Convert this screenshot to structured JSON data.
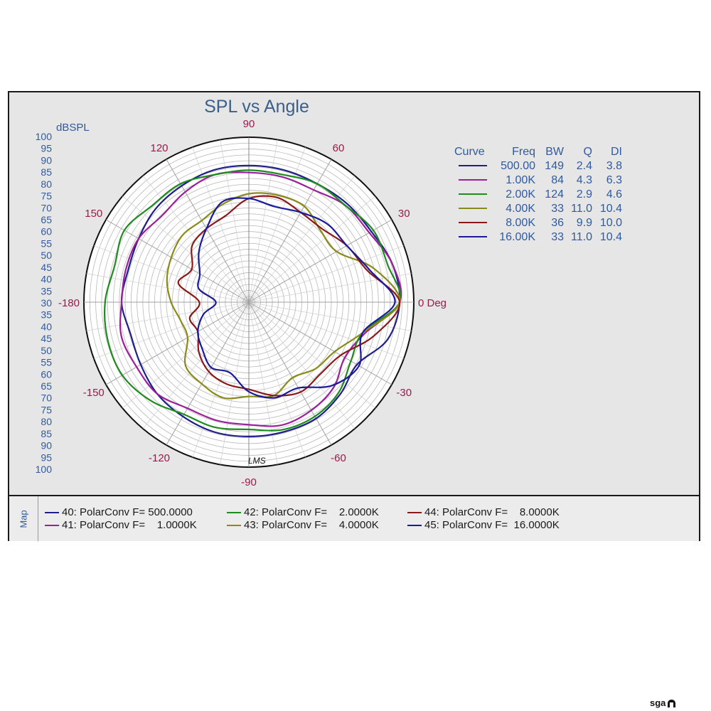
{
  "chart_data": {
    "type": "polar",
    "title": "SPL vs Angle",
    "rlabel": "dBSPL",
    "rlim": [
      30,
      100
    ],
    "r_ticks": [
      "100",
      "95",
      "90",
      "85",
      "80",
      "75",
      "70",
      "65",
      "60",
      "55",
      "50",
      "45",
      "40",
      "35",
      "30",
      "35",
      "40",
      "45",
      "50",
      "55",
      "60",
      "65",
      "70",
      "75",
      "80",
      "85",
      "90",
      "95",
      "100"
    ],
    "angle_labels": [
      {
        "deg": 0,
        "text": "0 Deg"
      },
      {
        "deg": 30,
        "text": "30"
      },
      {
        "deg": 60,
        "text": "60"
      },
      {
        "deg": 90,
        "text": "90"
      },
      {
        "deg": 120,
        "text": "120"
      },
      {
        "deg": 150,
        "text": "150"
      },
      {
        "deg": 180,
        "text": "-180"
      },
      {
        "deg": -150,
        "text": "-150"
      },
      {
        "deg": -120,
        "text": "-120"
      },
      {
        "deg": -90,
        "text": "-90"
      },
      {
        "deg": -60,
        "text": "-60"
      },
      {
        "deg": -30,
        "text": "-30"
      }
    ],
    "watermark": "LMS",
    "table_headers": [
      "Curve",
      "Freq",
      "BW",
      "Q",
      "DI"
    ],
    "series": [
      {
        "name": "40: PolarConv F= 500.0000",
        "color": "#1f1f8a",
        "freq": "500.00",
        "bw": "149",
        "q": "2.4",
        "di": "3.8",
        "points": [
          [
            0,
            94
          ],
          [
            15,
            93
          ],
          [
            30,
            90
          ],
          [
            45,
            89
          ],
          [
            60,
            88
          ],
          [
            75,
            88
          ],
          [
            90,
            88
          ],
          [
            105,
            88
          ],
          [
            120,
            87
          ],
          [
            135,
            86
          ],
          [
            150,
            84
          ],
          [
            165,
            83
          ],
          [
            180,
            84
          ],
          [
            195,
            82
          ],
          [
            210,
            83
          ],
          [
            225,
            85
          ],
          [
            240,
            86
          ],
          [
            255,
            87
          ],
          [
            270,
            87
          ],
          [
            285,
            87
          ],
          [
            300,
            87
          ],
          [
            315,
            85
          ],
          [
            330,
            83
          ],
          [
            345,
            91
          ]
        ]
      },
      {
        "name": "41: PolarConv F=    1.0000K",
        "color": "#9b1f9b",
        "freq": "1.00K",
        "bw": "84",
        "q": "4.3",
        "di": "6.3",
        "points": [
          [
            0,
            94
          ],
          [
            15,
            93
          ],
          [
            30,
            89
          ],
          [
            45,
            88
          ],
          [
            60,
            85
          ],
          [
            75,
            85
          ],
          [
            90,
            85
          ],
          [
            105,
            86
          ],
          [
            120,
            84
          ],
          [
            135,
            82
          ],
          [
            150,
            84
          ],
          [
            165,
            84
          ],
          [
            180,
            84
          ],
          [
            195,
            86
          ],
          [
            210,
            85
          ],
          [
            225,
            85
          ],
          [
            240,
            82
          ],
          [
            255,
            82
          ],
          [
            270,
            82
          ],
          [
            285,
            84
          ],
          [
            300,
            83
          ],
          [
            315,
            81
          ],
          [
            330,
            77
          ],
          [
            345,
            81
          ]
        ]
      },
      {
        "name": "42: PolarConv F=    2.0000K",
        "color": "#1f8a1f",
        "freq": "2.00K",
        "bw": "124",
        "q": "2.9",
        "di": "4.6",
        "points": [
          [
            0,
            94
          ],
          [
            15,
            91
          ],
          [
            30,
            91
          ],
          [
            45,
            88
          ],
          [
            60,
            88
          ],
          [
            75,
            86
          ],
          [
            90,
            86
          ],
          [
            105,
            86
          ],
          [
            120,
            88
          ],
          [
            135,
            88
          ],
          [
            150,
            91
          ],
          [
            165,
            89
          ],
          [
            180,
            91
          ],
          [
            195,
            92
          ],
          [
            210,
            92
          ],
          [
            225,
            89
          ],
          [
            240,
            85
          ],
          [
            255,
            85
          ],
          [
            270,
            84
          ],
          [
            285,
            86
          ],
          [
            300,
            86
          ],
          [
            315,
            84
          ],
          [
            330,
            80
          ],
          [
            345,
            80
          ]
        ]
      },
      {
        "name": "43: PolarConv F=    4.0000K",
        "color": "#8a8a1a",
        "freq": "4.00K",
        "bw": "33",
        "q": "11.0",
        "di": "10.4",
        "points": [
          [
            0,
            94
          ],
          [
            15,
            85
          ],
          [
            30,
            73
          ],
          [
            45,
            73
          ],
          [
            60,
            77
          ],
          [
            75,
            77
          ],
          [
            90,
            76
          ],
          [
            105,
            73
          ],
          [
            120,
            70
          ],
          [
            135,
            70
          ],
          [
            150,
            68
          ],
          [
            165,
            66
          ],
          [
            180,
            63
          ],
          [
            195,
            60
          ],
          [
            210,
            60
          ],
          [
            225,
            68
          ],
          [
            240,
            70
          ],
          [
            255,
            72
          ],
          [
            270,
            70
          ],
          [
            285,
            71
          ],
          [
            300,
            67
          ],
          [
            315,
            70
          ],
          [
            330,
            72
          ],
          [
            345,
            80
          ]
        ]
      },
      {
        "name": "44: PolarConv F=    8.0000K",
        "color": "#8a1a1a",
        "freq": "8.00K",
        "bw": "36",
        "q": "9.9",
        "di": "10.0",
        "points": [
          [
            0,
            94
          ],
          [
            15,
            82
          ],
          [
            30,
            78
          ],
          [
            45,
            74
          ],
          [
            60,
            74
          ],
          [
            75,
            76
          ],
          [
            90,
            74
          ],
          [
            105,
            68
          ],
          [
            120,
            66
          ],
          [
            135,
            64
          ],
          [
            150,
            58
          ],
          [
            165,
            61
          ],
          [
            180,
            51
          ],
          [
            195,
            56
          ],
          [
            210,
            55
          ],
          [
            225,
            60
          ],
          [
            240,
            64
          ],
          [
            255,
            66
          ],
          [
            270,
            67
          ],
          [
            285,
            71
          ],
          [
            300,
            74
          ],
          [
            315,
            73
          ],
          [
            330,
            75
          ],
          [
            345,
            85
          ]
        ]
      },
      {
        "name": "45: PolarConv F=  16.0000K",
        "color": "#1a1a9a",
        "freq": "16.00K",
        "bw": "33",
        "q": "11.0",
        "di": "10.4",
        "points": [
          [
            0,
            92
          ],
          [
            15,
            83
          ],
          [
            30,
            78
          ],
          [
            45,
            77
          ],
          [
            60,
            74
          ],
          [
            75,
            72
          ],
          [
            90,
            74
          ],
          [
            105,
            74
          ],
          [
            120,
            66
          ],
          [
            135,
            60
          ],
          [
            150,
            54
          ],
          [
            165,
            52
          ],
          [
            180,
            44
          ],
          [
            195,
            50
          ],
          [
            210,
            55
          ],
          [
            225,
            58
          ],
          [
            240,
            62
          ],
          [
            255,
            61
          ],
          [
            270,
            68
          ],
          [
            285,
            72
          ],
          [
            300,
            72
          ],
          [
            315,
            80
          ],
          [
            330,
            84
          ],
          [
            345,
            80
          ]
        ]
      }
    ]
  },
  "legend": {
    "map_label": "Map",
    "items": [
      {
        "label": "40: PolarConv F= 500.0000",
        "color": "#1f1f8a"
      },
      {
        "label": "41: PolarConv F=    1.0000K",
        "color": "#9b1f9b"
      },
      {
        "label": "42: PolarConv F=    2.0000K",
        "color": "#1f8a1f"
      },
      {
        "label": "43: PolarConv F=    4.0000K",
        "color": "#8a8a1a"
      },
      {
        "label": "44: PolarConv F=    8.0000K",
        "color": "#8a1a1a"
      },
      {
        "label": "45: PolarConv F=  16.0000K",
        "color": "#1a1a9a"
      }
    ]
  },
  "brand": {
    "text": "sga"
  }
}
